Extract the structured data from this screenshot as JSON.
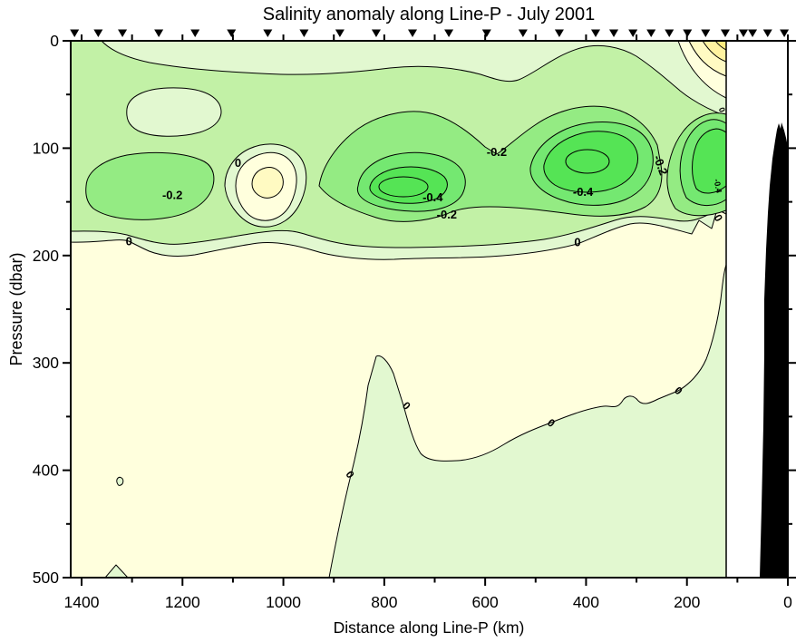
{
  "title": "Salinity anomaly along Line-P - July 2001",
  "chart_data": {
    "type": "heatmap",
    "subtype": "filled_contour_section",
    "title": "Salinity anomaly along Line-P - July 2001",
    "xlabel": "Distance along Line-P (km)",
    "ylabel": "Pressure (dbar)",
    "xlim": [
      1420,
      0
    ],
    "x_reversed": true,
    "ylim": [
      0,
      500
    ],
    "y_inverted": true,
    "grid": false,
    "legend": "none",
    "contour_interval": 0.1,
    "contour_levels": [
      -0.5,
      -0.4,
      -0.3,
      -0.2,
      -0.1,
      0,
      0.1,
      0.2,
      0.3
    ],
    "x_major_ticks": [
      1400,
      1200,
      1000,
      800,
      600,
      400,
      200,
      0
    ],
    "x_tick_labels": [
      "1400",
      "1200",
      "1000",
      "800",
      "600",
      "400",
      "200",
      "0"
    ],
    "x_minor_step_km": 100,
    "y_major_ticks": [
      0,
      100,
      200,
      300,
      400,
      500
    ],
    "y_tick_labels": [
      "0",
      "100",
      "200",
      "300",
      "400",
      "500"
    ],
    "y_minor_step_dbar": 50,
    "station_markers_km": [
      1414,
      1367,
      1319,
      1247,
      1175,
      1103,
      1031,
      959,
      888,
      816,
      744,
      672,
      597,
      525,
      453,
      381,
      345,
      307,
      271,
      235,
      199,
      163,
      124,
      88,
      70,
      40,
      7
    ],
    "palette": {
      "cream": "#FFFFDD",
      "g1": "#E2F8D0",
      "g2": "#C2F1A6",
      "g3": "#94EB83",
      "g4": "#74E871",
      "g5": "#55E455",
      "y1": "#FFFAC2",
      "y2": "#FFF3A0",
      "y3": "#FFEB7F",
      "land": "#000000",
      "contour_line": "#000000"
    },
    "bands": [
      {
        "range": "below -0.4",
        "color": "#55E455"
      },
      {
        "range": "-0.4 to -0.3",
        "color": "#74E871"
      },
      {
        "range": "-0.3 to -0.2",
        "color": "#94EB83"
      },
      {
        "range": "-0.2 to -0.1",
        "color": "#C2F1A6"
      },
      {
        "range": "-0.1 to 0",
        "color": "#E2F8D0"
      },
      {
        "range": "0 to 0.1",
        "color": "#FFFFDD"
      },
      {
        "range": "0.1 to 0.2",
        "color": "#FFFAC2"
      },
      {
        "range": "0.2 to 0.3",
        "color": "#FFF3A0"
      },
      {
        "range": "above 0.3",
        "color": "#FFEB7F"
      }
    ],
    "contour_labels": [
      {
        "text": "-0.2",
        "km": 1220,
        "dbar": 144,
        "rot": 0,
        "size": 13
      },
      {
        "text": "0",
        "km": 1090,
        "dbar": 114,
        "rot": 0,
        "size": 13
      },
      {
        "text": "0",
        "km": 1306,
        "dbar": 187,
        "rot": 0,
        "size": 13
      },
      {
        "text": "-0.2",
        "km": 577,
        "dbar": 104,
        "rot": 0,
        "size": 13
      },
      {
        "text": "-0.4",
        "km": 704,
        "dbar": 146,
        "rot": 0,
        "size": 13
      },
      {
        "text": "-0.2",
        "km": 676,
        "dbar": 162,
        "rot": 0,
        "size": 13
      },
      {
        "text": "-0.4",
        "km": 406,
        "dbar": 141,
        "rot": 0,
        "size": 13
      },
      {
        "text": "-0.2",
        "km": 253,
        "dbar": 116,
        "rot": 70,
        "size": 13
      },
      {
        "text": "0",
        "km": 417,
        "dbar": 188,
        "rot": 0,
        "size": 13
      },
      {
        "text": "0",
        "km": 138,
        "dbar": 165,
        "rot": 60,
        "size": 12
      },
      {
        "text": "0",
        "km": 868,
        "dbar": 404,
        "rot": 55,
        "size": 12
      },
      {
        "text": "0",
        "km": 756,
        "dbar": 340,
        "rot": 45,
        "size": 12
      },
      {
        "text": "0",
        "km": 469,
        "dbar": 356,
        "rot": 40,
        "size": 12
      },
      {
        "text": "0",
        "km": 217,
        "dbar": 326,
        "rot": 45,
        "size": 12
      },
      {
        "text": "-0.4",
        "km": 137,
        "dbar": 135,
        "rot": 80,
        "size": 9
      },
      {
        "text": "0",
        "km": 129,
        "dbar": 64,
        "rot": 70,
        "size": 9
      }
    ],
    "features": [
      {
        "name": "fresh-core",
        "km": 760,
        "dbar": 135,
        "min_anomaly": -0.5
      },
      {
        "name": "fresh-core",
        "km": 400,
        "dbar": 130,
        "min_anomaly": -0.5
      },
      {
        "name": "fresh-core-nearshore",
        "km": 140,
        "dbar": 185,
        "min_anomaly": -0.5
      },
      {
        "name": "fresh-blob",
        "km": 1215,
        "dbar": 145,
        "min_anomaly": -0.3
      },
      {
        "name": "salty-blob",
        "km": 1040,
        "dbar": 135,
        "max_anomaly": 0.2
      },
      {
        "name": "salty-surface-corner",
        "km": 30,
        "dbar": 5,
        "max_anomaly": 0.3
      },
      {
        "name": "deep-fresh-tongue",
        "km_range": [
          900,
          120
        ],
        "dbar_range": [
          290,
          500
        ],
        "anomaly": "0 to -0.1"
      }
    ],
    "bathymetry": {
      "color": "#000000",
      "extent_km": [
        0,
        55
      ],
      "top_dbar": 77
    }
  }
}
